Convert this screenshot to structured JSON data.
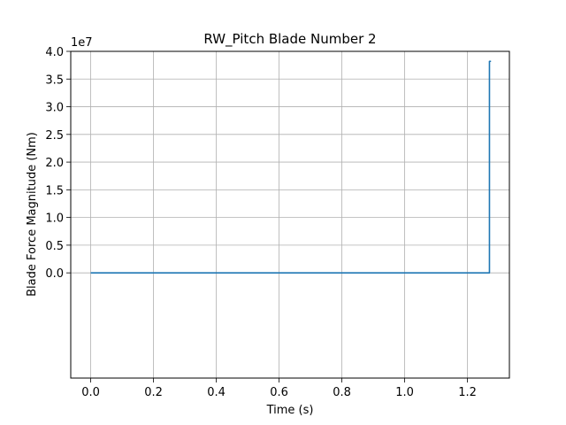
{
  "chart_data": {
    "type": "line",
    "title": "RW_Pitch Blade Number 2",
    "xlabel": "Time (s)",
    "ylabel": "Blade Force Magnitude (Nm)",
    "y_offset_text": "1e7",
    "xlim": [
      -0.0635,
      1.3335
    ],
    "ylim": [
      -19000000,
      40000000
    ],
    "x_ticks": [
      0.0,
      0.2,
      0.4,
      0.6,
      0.8,
      1.0,
      1.2
    ],
    "x_tick_labels": [
      "0.0",
      "0.2",
      "0.4",
      "0.6",
      "0.8",
      "1.0",
      "1.2"
    ],
    "y_ticks": [
      0,
      5000000,
      10000000,
      15000000,
      20000000,
      25000000,
      30000000,
      35000000,
      40000000
    ],
    "y_tick_labels": [
      "0.0",
      "0.5",
      "1.0",
      "1.5",
      "2.0",
      "2.5",
      "3.0",
      "3.5",
      "4.0"
    ],
    "grid": true,
    "series": [
      {
        "color": "#1f77b4",
        "x": [
          0.0,
          1.27,
          1.27,
          1.275
        ],
        "y": [
          0,
          0,
          38200000,
          38200000
        ]
      }
    ]
  }
}
